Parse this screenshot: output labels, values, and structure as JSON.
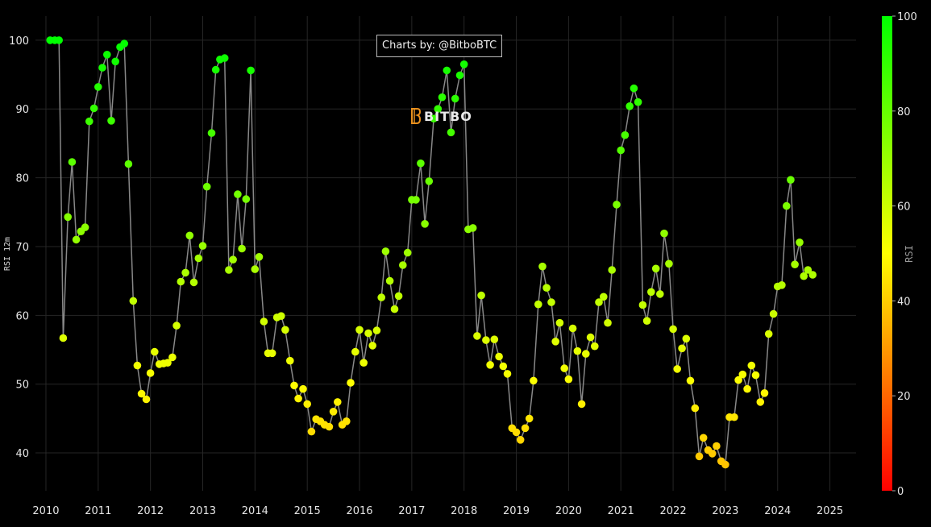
{
  "chart_data": {
    "type": "scatter",
    "credit": "Charts by: @BitboBTC",
    "watermark": "BITBO",
    "ylabel": "RSI 12m",
    "colorbar_title": "RSI",
    "colorbar_ticks": [
      0,
      20,
      40,
      60,
      80,
      100
    ],
    "colorscale": [
      "#ff0000",
      "#ffff00",
      "#00ff00"
    ],
    "line_color": "#888888",
    "grid": true,
    "xlim": [
      2009.8,
      2025.5
    ],
    "ylim": [
      34.5,
      103.5
    ],
    "xticks": [
      2010,
      2011,
      2012,
      2013,
      2014,
      2015,
      2016,
      2017,
      2018,
      2019,
      2020,
      2021,
      2022,
      2023,
      2024,
      2025
    ],
    "xtick_labels": [
      "2010",
      "2011",
      "2012",
      "2013",
      "2014",
      "2015",
      "2016",
      "2017",
      "2018",
      "2019",
      "2020",
      "2021",
      "2022",
      "2023",
      "2024",
      "2025"
    ],
    "yticks": [
      40,
      50,
      60,
      70,
      80,
      90,
      100
    ],
    "ytick_labels": [
      "40",
      "50",
      "60",
      "70",
      "80",
      "90",
      "100"
    ],
    "points": [
      [
        2010.08,
        100
      ],
      [
        2010.17,
        100
      ],
      [
        2010.25,
        100
      ],
      [
        2010.33,
        56.7
      ],
      [
        2010.42,
        74.3
      ],
      [
        2010.5,
        82.3
      ],
      [
        2010.58,
        71
      ],
      [
        2010.67,
        72.2
      ],
      [
        2010.75,
        72.8
      ],
      [
        2010.83,
        88.2
      ],
      [
        2010.92,
        90.1
      ],
      [
        2011.0,
        93.2
      ],
      [
        2011.08,
        96
      ],
      [
        2011.17,
        97.9
      ],
      [
        2011.25,
        88.3
      ],
      [
        2011.33,
        96.9
      ],
      [
        2011.42,
        99
      ],
      [
        2011.5,
        99.5
      ],
      [
        2011.58,
        82
      ],
      [
        2011.67,
        62.1
      ],
      [
        2011.75,
        52.7
      ],
      [
        2011.83,
        48.6
      ],
      [
        2011.92,
        47.8
      ],
      [
        2012.0,
        51.6
      ],
      [
        2012.08,
        54.7
      ],
      [
        2012.17,
        52.9
      ],
      [
        2012.25,
        53
      ],
      [
        2012.33,
        53.1
      ],
      [
        2012.42,
        53.9
      ],
      [
        2012.5,
        58.5
      ],
      [
        2012.58,
        64.9
      ],
      [
        2012.67,
        66.2
      ],
      [
        2012.75,
        71.6
      ],
      [
        2012.83,
        64.8
      ],
      [
        2012.92,
        68.3
      ],
      [
        2013.0,
        70.1
      ],
      [
        2013.08,
        78.7
      ],
      [
        2013.17,
        86.5
      ],
      [
        2013.25,
        95.7
      ],
      [
        2013.33,
        97.2
      ],
      [
        2013.42,
        97.4
      ],
      [
        2013.5,
        66.6
      ],
      [
        2013.58,
        68.1
      ],
      [
        2013.67,
        77.6
      ],
      [
        2013.75,
        69.7
      ],
      [
        2013.83,
        76.9
      ],
      [
        2013.92,
        95.6
      ],
      [
        2014.0,
        66.7
      ],
      [
        2014.08,
        68.5
      ],
      [
        2014.17,
        59.1
      ],
      [
        2014.25,
        54.5
      ],
      [
        2014.33,
        54.5
      ],
      [
        2014.42,
        59.7
      ],
      [
        2014.5,
        59.9
      ],
      [
        2014.58,
        57.9
      ],
      [
        2014.67,
        53.4
      ],
      [
        2014.75,
        49.8
      ],
      [
        2014.83,
        47.9
      ],
      [
        2014.92,
        49.3
      ],
      [
        2015.0,
        47.1
      ],
      [
        2015.08,
        43.1
      ],
      [
        2015.17,
        44.9
      ],
      [
        2015.25,
        44.6
      ],
      [
        2015.33,
        44.1
      ],
      [
        2015.42,
        43.8
      ],
      [
        2015.5,
        46
      ],
      [
        2015.58,
        47.4
      ],
      [
        2015.67,
        44.1
      ],
      [
        2015.75,
        44.6
      ],
      [
        2015.83,
        50.2
      ],
      [
        2015.92,
        54.7
      ],
      [
        2016.0,
        57.9
      ],
      [
        2016.08,
        53.1
      ],
      [
        2016.17,
        57.4
      ],
      [
        2016.25,
        55.6
      ],
      [
        2016.33,
        57.8
      ],
      [
        2016.42,
        62.6
      ],
      [
        2016.5,
        69.3
      ],
      [
        2016.58,
        65
      ],
      [
        2016.67,
        60.9
      ],
      [
        2016.75,
        62.8
      ],
      [
        2016.83,
        67.3
      ],
      [
        2016.92,
        69.1
      ],
      [
        2017.0,
        76.8
      ],
      [
        2017.08,
        76.8
      ],
      [
        2017.17,
        82.1
      ],
      [
        2017.25,
        73.3
      ],
      [
        2017.33,
        79.5
      ],
      [
        2017.42,
        88.6
      ],
      [
        2017.5,
        90
      ],
      [
        2017.58,
        91.7
      ],
      [
        2017.67,
        95.6
      ],
      [
        2017.75,
        86.6
      ],
      [
        2017.83,
        91.5
      ],
      [
        2017.92,
        94.9
      ],
      [
        2018.0,
        96.5
      ],
      [
        2018.08,
        72.5
      ],
      [
        2018.17,
        72.7
      ],
      [
        2018.25,
        57
      ],
      [
        2018.33,
        62.9
      ],
      [
        2018.42,
        56.4
      ],
      [
        2018.5,
        52.8
      ],
      [
        2018.58,
        56.5
      ],
      [
        2018.67,
        54
      ],
      [
        2018.75,
        52.6
      ],
      [
        2018.83,
        51.5
      ],
      [
        2018.92,
        43.6
      ],
      [
        2019.0,
        43
      ],
      [
        2019.08,
        41.9
      ],
      [
        2019.17,
        43.6
      ],
      [
        2019.25,
        45
      ],
      [
        2019.33,
        50.5
      ],
      [
        2019.42,
        61.6
      ],
      [
        2019.5,
        67.1
      ],
      [
        2019.58,
        64
      ],
      [
        2019.67,
        61.9
      ],
      [
        2019.75,
        56.2
      ],
      [
        2019.83,
        58.9
      ],
      [
        2019.92,
        52.3
      ],
      [
        2020.0,
        50.7
      ],
      [
        2020.08,
        58.1
      ],
      [
        2020.17,
        54.8
      ],
      [
        2020.25,
        47.1
      ],
      [
        2020.33,
        54.4
      ],
      [
        2020.42,
        56.8
      ],
      [
        2020.5,
        55.5
      ],
      [
        2020.58,
        61.9
      ],
      [
        2020.67,
        62.7
      ],
      [
        2020.75,
        58.9
      ],
      [
        2020.83,
        66.6
      ],
      [
        2020.92,
        76.1
      ],
      [
        2021.0,
        84
      ],
      [
        2021.08,
        86.2
      ],
      [
        2021.17,
        90.4
      ],
      [
        2021.25,
        93
      ],
      [
        2021.33,
        91
      ],
      [
        2021.42,
        61.5
      ],
      [
        2021.5,
        59.2
      ],
      [
        2021.58,
        63.4
      ],
      [
        2021.67,
        66.8
      ],
      [
        2021.75,
        63.1
      ],
      [
        2021.83,
        71.9
      ],
      [
        2021.92,
        67.5
      ],
      [
        2022.0,
        58
      ],
      [
        2022.08,
        52.2
      ],
      [
        2022.17,
        55.2
      ],
      [
        2022.25,
        56.6
      ],
      [
        2022.33,
        50.5
      ],
      [
        2022.42,
        46.5
      ],
      [
        2022.5,
        39.5
      ],
      [
        2022.58,
        42.2
      ],
      [
        2022.67,
        40.4
      ],
      [
        2022.75,
        39.9
      ],
      [
        2022.83,
        41
      ],
      [
        2022.92,
        38.8
      ],
      [
        2023.0,
        38.3
      ],
      [
        2023.08,
        45.2
      ],
      [
        2023.17,
        45.2
      ],
      [
        2023.25,
        50.6
      ],
      [
        2023.33,
        51.4
      ],
      [
        2023.42,
        49.3
      ],
      [
        2023.5,
        52.7
      ],
      [
        2023.58,
        51.3
      ],
      [
        2023.67,
        47.4
      ],
      [
        2023.75,
        48.7
      ],
      [
        2023.83,
        57.3
      ],
      [
        2023.92,
        60.2
      ],
      [
        2024.0,
        64.2
      ],
      [
        2024.08,
        64.4
      ],
      [
        2024.17,
        75.9
      ],
      [
        2024.25,
        79.7
      ],
      [
        2024.33,
        67.4
      ],
      [
        2024.42,
        70.6
      ],
      [
        2024.5,
        65.7
      ],
      [
        2024.58,
        66.6
      ],
      [
        2024.67,
        65.9
      ]
    ]
  }
}
